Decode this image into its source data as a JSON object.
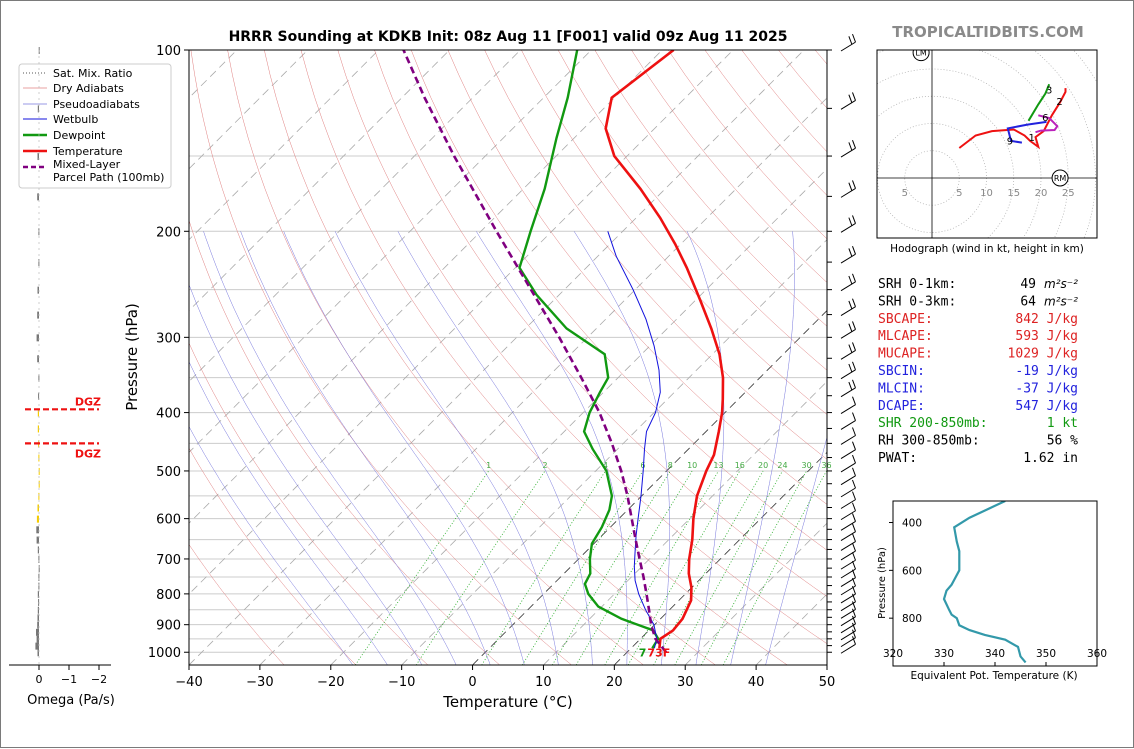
{
  "title": "HRRR Sounding at KDKB Init: 08z Aug 11 [F001] valid 09z Aug 11 2025",
  "watermark": "TROPICALTIDBITS.COM",
  "chart_data": [
    {
      "id": "skewt",
      "type": "line",
      "title": "HRRR Sounding at KDKB Init: 08z Aug 11 [F001] valid 09z Aug 11 2025",
      "xlabel": "Temperature (°C)",
      "ylabel": "Pressure (hPa)",
      "xlim": [
        -40,
        50
      ],
      "ylim": [
        1050,
        100
      ],
      "y_scale": "log",
      "skew": true,
      "grid": true,
      "legend_position": "top-left",
      "x_ticks": [
        "−40",
        "−30",
        "−20",
        "−10",
        "0",
        "10",
        "20",
        "30",
        "40",
        "50"
      ],
      "y_ticks": [
        "100",
        "200",
        "300",
        "400",
        "500",
        "600",
        "700",
        "800",
        "900",
        "1000"
      ],
      "legend": [
        "Sat. Mix. Ratio",
        "Dry Adiabats",
        "Pseudoadiabats",
        "Wetbulb",
        "Dewpoint",
        "Temperature",
        "Mixed-Layer\nParcel Path (100mb)"
      ],
      "mixing_ratio_labels": [
        "1",
        "2",
        "4",
        "6",
        "8",
        "10",
        "13",
        "16",
        "20",
        "24",
        "30",
        "36"
      ],
      "surface_label": "73F",
      "surface_label_prefix": "7",
      "series": [
        {
          "name": "Temperature",
          "color": "#ee1111",
          "p": [
            985,
            950,
            920,
            880,
            820,
            780,
            740,
            700,
            650,
            600,
            550,
            500,
            470,
            430,
            400,
            380,
            350,
            320,
            290,
            260,
            230,
            210,
            190,
            170,
            150,
            135,
            120,
            100
          ],
          "t": [
            24,
            22.8,
            23.4,
            23.1,
            21.7,
            19.9,
            17.6,
            15.6,
            13.3,
            10.5,
            7.8,
            5.6,
            4.4,
            1.8,
            -0.4,
            -2.2,
            -5.2,
            -9.0,
            -13.8,
            -19.4,
            -25.8,
            -30.8,
            -36.6,
            -43.5,
            -51.8,
            -56.9,
            -60.4,
            -58.4
          ]
        },
        {
          "name": "Dewpoint",
          "color": "#119911",
          "p": [
            985,
            950,
            920,
            880,
            840,
            800,
            770,
            740,
            700,
            660,
            620,
            580,
            550,
            500,
            460,
            430,
            400,
            370,
            350,
            320,
            290,
            255,
            230,
            200,
            170,
            140,
            120,
            100
          ],
          "t": [
            23,
            22.5,
            20.6,
            14.5,
            9.5,
            6.3,
            4.4,
            3.7,
            1.6,
            -0.3,
            -1.2,
            -2.6,
            -4.2,
            -8.5,
            -13.5,
            -17.2,
            -19.1,
            -20.5,
            -21.4,
            -25.2,
            -34.2,
            -43.2,
            -49.4,
            -53.0,
            -57.0,
            -62.5,
            -66.6,
            -72.0
          ]
        },
        {
          "name": "Wetbulb",
          "color": "#1111dd",
          "p": [
            985,
            950,
            900,
            850,
            800,
            760,
            720,
            680,
            640,
            600,
            550,
            500,
            460,
            430,
            400,
            370,
            340,
            310,
            280,
            250,
            220,
            200
          ],
          "t": [
            23.3,
            22.3,
            19.9,
            16.6,
            13.4,
            11.0,
            8.9,
            6.9,
            4.8,
            2.7,
            -0.1,
            -3.3,
            -6.2,
            -8.4,
            -9.8,
            -12.0,
            -15.3,
            -19.4,
            -24.3,
            -30.3,
            -37.4,
            -42.1
          ]
        },
        {
          "name": "Mixed-Layer\nParcel Path (100mb)",
          "color": "#800080",
          "p": [
            1000,
            950,
            900,
            850,
            800,
            750,
            700,
            650,
            600,
            550,
            500,
            450,
            400,
            350,
            300,
            250,
            200,
            150,
            120,
            100
          ],
          "t": [
            25.5,
            22.1,
            19.5,
            17.1,
            14.5,
            11.7,
            8.6,
            5.3,
            1.8,
            -2.0,
            -6.4,
            -11.6,
            -17.7,
            -25.2,
            -34.0,
            -44.7,
            -57.8,
            -74.4,
            -86.8,
            -96.5
          ]
        }
      ]
    },
    {
      "id": "omega",
      "type": "bar",
      "xlabel": "Omega (Pa/s)",
      "x_ticks": [
        "0",
        "−1",
        "−2"
      ],
      "xlim": [
        0,
        -2
      ],
      "dgz_label": "DGZ",
      "dgz_p": [
        395,
        450
      ],
      "p": [
        1000,
        975,
        950,
        925,
        900,
        875,
        850,
        825,
        800,
        775,
        750,
        725,
        700,
        675,
        650,
        625,
        600,
        575,
        550,
        525,
        500,
        475,
        450,
        425,
        400,
        375,
        350,
        325,
        300,
        275,
        250,
        225,
        200,
        175,
        150,
        125,
        100
      ],
      "values": [
        -0.05,
        -0.12,
        -0.08,
        -0.1,
        -0.06,
        -0.05,
        -0.04,
        -0.03,
        -0.04,
        -0.02,
        -0.02,
        -0.01,
        -0.02,
        -0.04,
        -0.08,
        -0.09,
        -0.07,
        -0.05,
        -0.02,
        -0.01,
        -0.01,
        -0.02,
        -0.03,
        -0.04,
        -0.04,
        -0.03,
        -0.02,
        -0.06,
        -0.08,
        -0.06,
        -0.05,
        -0.02,
        -0.02,
        -0.06,
        -0.05,
        -0.04,
        -0.01
      ]
    },
    {
      "id": "hodograph",
      "type": "line",
      "title": "Hodograph (wind in kt, height in km)",
      "rings": [
        5,
        10,
        15,
        20,
        25
      ],
      "ring_labels": [
        "5",
        "5",
        "10",
        "15",
        "20",
        "25"
      ],
      "marker_labels": [
        "LM",
        "RM"
      ],
      "lm": [
        -2,
        23
      ],
      "rm": [
        23.5,
        0
      ],
      "height_labels": [
        {
          "text": "3",
          "u": 21.5,
          "v": 16.2
        },
        {
          "text": "2",
          "u": 23.4,
          "v": 14.1
        },
        {
          "text": "6",
          "u": 20.8,
          "v": 11.2
        },
        {
          "text": "1",
          "u": 18.3,
          "v": 7.5
        },
        {
          "text": "9",
          "u": 14.3,
          "v": 6.9
        }
      ],
      "segments": [
        {
          "color": "#ee1111",
          "u": [
            5,
            8,
            11,
            15,
            17,
            18,
            19.5,
            19,
            20.5,
            22,
            23.5,
            24.5,
            24.5
          ],
          "v": [
            5.5,
            7.8,
            8.6,
            8.9,
            7.8,
            6.8,
            5.7,
            7.5,
            8.6,
            11.5,
            13.9,
            15.8,
            16.5
          ]
        },
        {
          "color": "#119911",
          "u": [
            21.5,
            20.8,
            19.5,
            17.7
          ],
          "v": [
            17.2,
            15.5,
            13.5,
            10.5
          ]
        },
        {
          "color": "#bb22bb",
          "u": [
            19.5,
            21.5,
            23,
            22.5,
            20,
            19
          ],
          "v": [
            11.5,
            11,
            9.5,
            8.8,
            8.7,
            8.4
          ]
        },
        {
          "color": "#2222dd",
          "u": [
            21,
            17.5,
            13.9,
            14.5,
            16.5
          ],
          "v": [
            10.3,
            9.8,
            9.1,
            6.8,
            6.5
          ]
        }
      ]
    },
    {
      "id": "theta-e",
      "type": "line",
      "xlabel": "Equivalent Pot. Temperature (K)",
      "ylabel": "Pressure (hPa)",
      "xlim": [
        320,
        360
      ],
      "ylim": [
        1000,
        310
      ],
      "x_ticks": [
        "320",
        "330",
        "340",
        "350",
        "360"
      ],
      "y_ticks": [
        "400",
        "600",
        "800"
      ],
      "series": [
        {
          "name": "",
          "color": "#3399aa",
          "p": [
            985,
            960,
            920,
            890,
            870,
            850,
            830,
            800,
            785,
            765,
            720,
            685,
            660,
            640,
            600,
            560,
            520,
            480,
            420,
            380,
            330,
            310
          ],
          "theta": [
            346,
            345,
            344.5,
            342,
            338,
            335,
            333,
            332.5,
            331.5,
            331,
            330,
            330.5,
            331.5,
            332,
            333,
            333,
            333,
            332.5,
            332,
            335,
            340,
            342
          ]
        }
      ]
    }
  ],
  "indices": [
    {
      "label": "SRH 0-1km:",
      "value": "49",
      "unit": "m²s⁻²",
      "color": "#000000"
    },
    {
      "label": "SRH 0-3km:",
      "value": "64",
      "unit": "m²s⁻²",
      "color": "#000000"
    },
    {
      "label": "SBCAPE:",
      "value": "842 J/kg",
      "unit": "",
      "color": "#dd2222"
    },
    {
      "label": "MLCAPE:",
      "value": "593 J/kg",
      "unit": "",
      "color": "#dd2222"
    },
    {
      "label": "MUCAPE:",
      "value": "1029 J/kg",
      "unit": "",
      "color": "#dd2222"
    },
    {
      "label": "SBCIN:",
      "value": "-19 J/kg",
      "unit": "",
      "color": "#2222dd"
    },
    {
      "label": "MLCIN:",
      "value": "-37 J/kg",
      "unit": "",
      "color": "#2222dd"
    },
    {
      "label": "DCAPE:",
      "value": "547 J/kg",
      "unit": "",
      "color": "#2222dd"
    },
    {
      "label": "SHR 200-850mb:",
      "value": "1 kt",
      "unit": "",
      "color": "#119911"
    },
    {
      "label": "RH 300-850mb:",
      "value": "56 %",
      "unit": "",
      "color": "#000000"
    },
    {
      "label": "PWAT:",
      "value": "1.62 in",
      "unit": "",
      "color": "#000000"
    }
  ]
}
